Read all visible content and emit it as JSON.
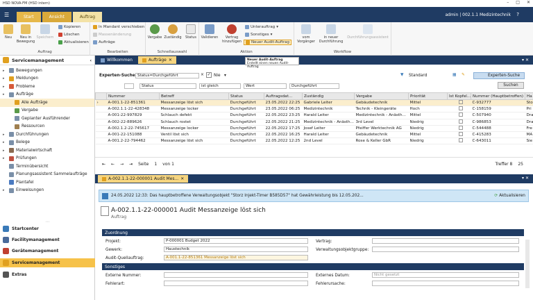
{
  "window": {
    "title": "HSD NOVA-FM (HSD intern)"
  },
  "ribbon_tabs": [
    "Start",
    "Ansicht",
    "Auftrag"
  ],
  "user": "admin | 002.1.1 Medizintechnik",
  "ribbon": {
    "groups": {
      "auftrag": "Auftrag",
      "bearbeiten": "Bearbeiten",
      "schnellauswahl": "Schnellauswahl",
      "aktion": "Aktion",
      "workflow": "Workflow"
    },
    "neu": "Neu",
    "neu_in_bewegung": "Neu in Bewegung",
    "speichern": "Speichern",
    "kopieren": "Kopieren",
    "loeschen": "Löschen",
    "aktualisieren": "Aktualisieren",
    "in_mandant": "In Mandant verschieben",
    "massenaenderung": "Massenänderung",
    "auftraege": "Aufträge",
    "vergabe": "Vergabe",
    "zustaendig": "Zuständig",
    "status": "Status",
    "validieren": "Validieren",
    "vertrag_hinzufuegen": "Vertrag hinzufügen",
    "unterauftrag": "Unterauftrag",
    "sonstiges": "Sonstiges",
    "neuer_audit": "Neuer Audit-Auftrag",
    "vom_vorgaenger": "vom Vorgänger",
    "in_neuer_durchfuehrung": "in neuer Durchführung",
    "durchfuehrungsassistent": "Durchführungsassistent"
  },
  "tooltip": {
    "title": "Neuer Audit-Auftrag",
    "text": "Erstellt einen neuen Audit-Auftrag"
  },
  "sidebar": {
    "title": "Servicemanagement",
    "items": [
      {
        "label": "Bewegungen",
        "level": 0,
        "color": "#7a8fa8"
      },
      {
        "label": "Meldungen",
        "level": 0,
        "color": "#e0a020"
      },
      {
        "label": "Probleme",
        "level": 0,
        "color": "#d65a3a"
      },
      {
        "label": "Aufträge",
        "level": 0,
        "color": "#7a8fa8"
      },
      {
        "label": "Alle Aufträge",
        "level": 1,
        "color": "#e0a020",
        "selected": true
      },
      {
        "label": "Vergabe",
        "level": 1,
        "color": "#5a9a4a"
      },
      {
        "label": "Geplanter Ausführender",
        "level": 1,
        "color": "#7a8fa8"
      },
      {
        "label": "Ressourcen",
        "level": 1,
        "color": "#a08050"
      },
      {
        "label": "Durchführungen",
        "level": 0,
        "color": "#7a8fa8"
      },
      {
        "label": "Belege",
        "level": 0,
        "color": "#7a8fa8"
      },
      {
        "label": "Materialwirtschaft",
        "level": 0,
        "color": "#8a6a50"
      },
      {
        "label": "Prüfungen",
        "level": 0,
        "color": "#c05040"
      },
      {
        "label": "Terminübersicht",
        "level": 0,
        "color": "#7a8fa8"
      },
      {
        "label": "Planungsassistent Sammelaufträge",
        "level": 0,
        "color": "#7a8fa8"
      },
      {
        "label": "Plantafel",
        "level": 0,
        "color": "#4a7ac0"
      },
      {
        "label": "Einweisungen",
        "level": 0,
        "color": "#7a8fa8"
      }
    ],
    "nav": [
      "Startcenter",
      "Facilitymanagement",
      "Gerätemanagement",
      "Servicemanagement",
      "Extras"
    ]
  },
  "doc_tabs": [
    "Willkommen",
    "Aufträge"
  ],
  "search": {
    "label": "Experten-Suche:",
    "value": "Status=Durchgeführt",
    "nie": "Nie",
    "field": "Status",
    "op": "ist gleich",
    "wert": "Wert",
    "val": "Durchgeführt",
    "standard": "Standard",
    "experten": "Experten-Suche",
    "suchen": "Suchen"
  },
  "table": {
    "columns": [
      "Nummer",
      "Betreff",
      "Status",
      "Auftragsdat...",
      "Zuständig",
      "Vergabe",
      "Priorität",
      "Ist Kopfel...",
      "Nummer (Hauptbetroffen)",
      "Ha"
    ],
    "rows": [
      [
        "A-001.1-22-851361",
        "Messanzeige löst sich",
        "Durchgeführt",
        "23.05.2022 22:25",
        "Gabriele Leiter",
        "Gebäudetechnik",
        "Mittel",
        "",
        "C-932777",
        "Sto"
      ],
      [
        "A-002.1.1-22-428348",
        "Messanzeige locker",
        "Durchgeführt",
        "23.05.2022 06:25",
        "Medizintechnik",
        "Technik - Kleingeräte",
        "Hoch",
        "",
        "C-158159",
        "Pri"
      ],
      [
        "A-001-22-997829",
        "Schlauch defekt",
        "Durchgeführt",
        "22.05.2022 23:25",
        "Harald Leiter",
        "Medizintechnik - Anästh...",
        "Mittel",
        "",
        "C-507940",
        "Dra"
      ],
      [
        "A-002-22-889626",
        "Schlauch rostet",
        "Durchgeführt",
        "22.05.2022 21:25",
        "Medizintechnik - Anästh...",
        "3rd Level",
        "Niedrig",
        "",
        "C-986853",
        "Dra"
      ],
      [
        "A-002.1.2-22-745617",
        "Messanzeige locker",
        "Durchgeführt",
        "22.05.2022 17:25",
        "Josef Leiter",
        "Pfeiffer Werktechnik AG",
        "Niedrig",
        "",
        "C-544488",
        "Fre"
      ],
      [
        "A-001-22-151088",
        "Ventil löst sich",
        "Durchgeführt",
        "22.05.2022 16:25",
        "Harald Leiter",
        "Gebäudetechnik",
        "Mittel",
        "",
        "C-415283",
        "MA"
      ],
      [
        "A-001.2-22-794462",
        "Messanzeige löst sich",
        "Durchgeführt",
        "22.05.2022 12:25",
        "2nd Level",
        "Rose & Keller GbR",
        "Niedrig",
        "",
        "C-643011",
        "Sie"
      ]
    ]
  },
  "pager": {
    "seite": "Seite",
    "page": "1",
    "von": "von 1",
    "treffer": "Treffer 8",
    "size": "25"
  },
  "detail": {
    "tab": "A-002.1.1-22-000001 Audit Mes...",
    "info": "24.05.2022 12:33: Das hauptbetroffene Verwaltungsobjekt \"Storz Injekt-Timer B585D57\" hat Gewährleistung bis 12.05.202...",
    "aktualisieren": "Aktualisieren",
    "title": "A-002.1.1-22-000001 Audit Messanzeige löst sich",
    "subtitle": "Auftrag",
    "zuordnung": "Zuordnung",
    "projekt_label": "Projekt:",
    "projekt": "P-000001 Budget 2022",
    "gewerk_label": "Gewerk:",
    "gewerk": "Haustechnik",
    "audit_label": "Audit-Quellauftrag:",
    "audit": "A-001.1-22-851361 Messanzeige löst sich",
    "vertrag_label": "Vertrag:",
    "vwg_label": "Verwaltungsobjektgruppe:",
    "sonstiges": "Sonstiges",
    "ext_nr_label": "Externe Nummer:",
    "ext_datum_label": "Externes Datum:",
    "ext_datum": "Nicht gesetzt",
    "fehlerart_label": "Fehlerart:",
    "fehlerursache_label": "Fehlerursache:"
  }
}
